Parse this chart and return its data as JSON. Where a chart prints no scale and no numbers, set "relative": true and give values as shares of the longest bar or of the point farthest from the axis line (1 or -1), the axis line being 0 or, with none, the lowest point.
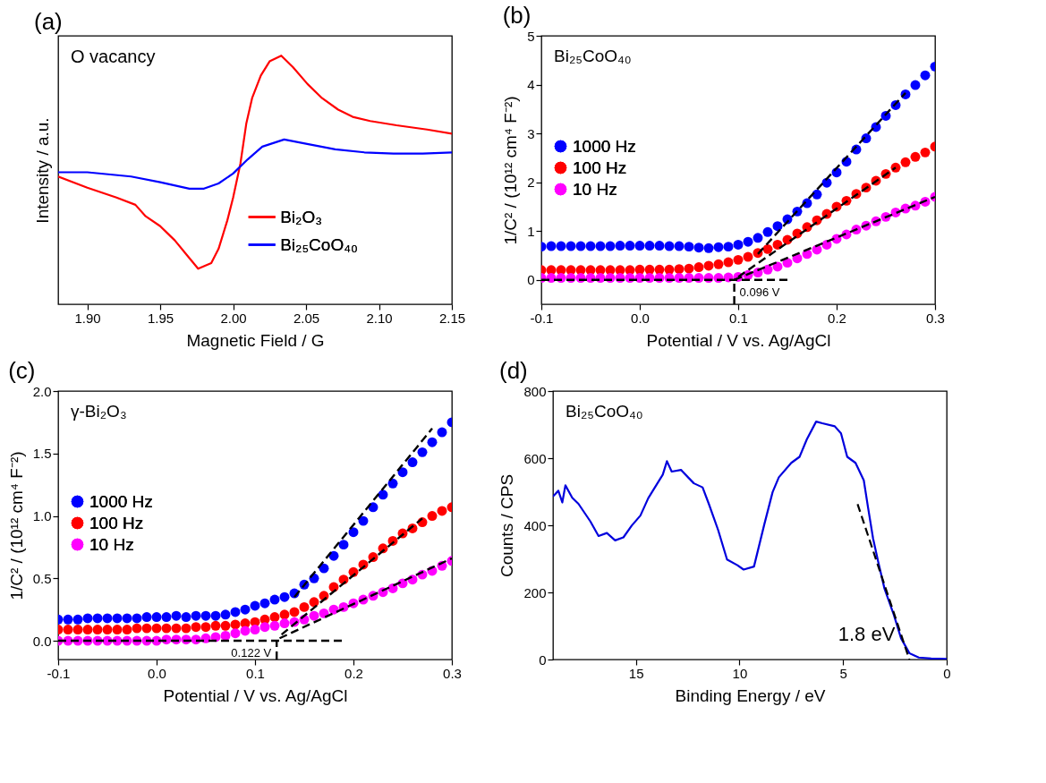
{
  "chart_data": [
    {
      "type": "line",
      "title": "(a)",
      "xlabel": "Magnetic Field / G",
      "ylabel": "Intensity / a.u.",
      "relative": true,
      "tick_labels": "x",
      "legend": "bottom right",
      "annotations": [
        "O vacancy"
      ],
      "xlim": [
        1.88,
        2.15
      ],
      "xticks": [
        {
          "value": 1.9,
          "label": "1.90"
        },
        1.95,
        {
          "value": 2,
          "label": "2.00"
        },
        2.05,
        {
          "value": 2.1,
          "label": "2.10"
        },
        2.15
      ],
      "series": [
        {
          "name": "Bi₂O₃",
          "color": "#ff0000",
          "x": [
            1.88,
            1.9,
            1.92,
            1.933,
            1.94,
            1.95,
            1.96,
            1.968,
            1.976,
            1.985,
            1.99,
            1.996,
            2.0,
            2.005,
            2.009,
            2.013,
            2.019,
            2.025,
            2.033,
            2.041,
            2.051,
            2.061,
            2.072,
            2.082,
            2.094,
            2.112,
            2.133,
            2.15
          ],
          "values": [
            0.514,
            0.469,
            0.429,
            0.4,
            0.354,
            0.314,
            0.257,
            0.2,
            0.143,
            0.166,
            0.223,
            0.337,
            0.429,
            0.566,
            0.726,
            0.829,
            0.92,
            0.977,
            1.0,
            0.954,
            0.886,
            0.829,
            0.783,
            0.754,
            0.737,
            0.72,
            0.703,
            0.686
          ]
        },
        {
          "name": "Bi₂₅CoO₄₀",
          "color": "#0000ff",
          "x": [
            1.88,
            1.9,
            1.93,
            1.95,
            1.97,
            1.98,
            1.99,
            2.0,
            2.01,
            2.02,
            2.035,
            2.05,
            2.07,
            2.09,
            2.11,
            2.13,
            2.15
          ],
          "values": [
            0.531,
            0.531,
            0.514,
            0.491,
            0.465,
            0.465,
            0.486,
            0.526,
            0.583,
            0.634,
            0.663,
            0.646,
            0.623,
            0.611,
            0.606,
            0.606,
            0.611
          ]
        }
      ]
    },
    {
      "type": "scatter",
      "title": "(b)",
      "xlabel": "Potential / V vs. Ag/AgCl",
      "ylabel": "1/C² / (10¹² cm⁴ F⁻²)",
      "marker": "circle",
      "legend": "left",
      "annotations": [
        "Bi₂₅CoO₄₀",
        {
          "text": "0.096 V",
          "x": 0.096,
          "y": 0
        }
      ],
      "xlim": [
        -0.1,
        0.3
      ],
      "xticks": [
        -0.1,
        {
          "value": 0,
          "label": "0.0"
        },
        0.1,
        0.2,
        0.3
      ],
      "ylim": [
        -0.5,
        5
      ],
      "yticks": [
        0,
        1,
        2,
        3,
        4,
        5
      ],
      "x": [
        -0.1,
        -0.09,
        -0.08,
        -0.07,
        -0.06,
        -0.05,
        -0.04,
        -0.03,
        -0.02,
        -0.01,
        0,
        0.01,
        0.02,
        0.03,
        0.04,
        0.05,
        0.06,
        0.07,
        0.08,
        0.09,
        0.1,
        0.11,
        0.12,
        0.13,
        0.14,
        0.15,
        0.16,
        0.17,
        0.18,
        0.19,
        0.2,
        0.21,
        0.22,
        0.23,
        0.24,
        0.25,
        0.26,
        0.27,
        0.28,
        0.29,
        0.3
      ],
      "series": [
        {
          "name": "1000 Hz",
          "color": "#0000ff",
          "values": [
            0.68,
            0.69,
            0.69,
            0.69,
            0.69,
            0.69,
            0.69,
            0.69,
            0.7,
            0.7,
            0.7,
            0.7,
            0.7,
            0.69,
            0.69,
            0.68,
            0.66,
            0.65,
            0.67,
            0.68,
            0.72,
            0.78,
            0.86,
            0.98,
            1.1,
            1.24,
            1.4,
            1.57,
            1.75,
            1.99,
            2.2,
            2.42,
            2.67,
            2.9,
            3.13,
            3.36,
            3.58,
            3.8,
            3.99,
            4.19,
            4.37
          ]
        },
        {
          "name": "100 Hz",
          "color": "#ff0000",
          "values": [
            0.2,
            0.2,
            0.2,
            0.2,
            0.2,
            0.2,
            0.2,
            0.2,
            0.2,
            0.2,
            0.21,
            0.21,
            0.21,
            0.21,
            0.22,
            0.23,
            0.26,
            0.29,
            0.32,
            0.36,
            0.41,
            0.47,
            0.55,
            0.63,
            0.72,
            0.82,
            0.95,
            1.08,
            1.22,
            1.35,
            1.5,
            1.62,
            1.76,
            1.89,
            2.03,
            2.17,
            2.3,
            2.41,
            2.52,
            2.61,
            2.73
          ]
        },
        {
          "name": "10 Hz",
          "color": "#ff00ff",
          "values": [
            0.04,
            0.04,
            0.04,
            0.04,
            0.04,
            0.04,
            0.04,
            0.04,
            0.04,
            0.04,
            0.04,
            0.04,
            0.04,
            0.04,
            0.04,
            0.04,
            0.04,
            0.04,
            0.04,
            0.05,
            0.06,
            0.1,
            0.15,
            0.21,
            0.27,
            0.35,
            0.44,
            0.53,
            0.62,
            0.72,
            0.84,
            0.93,
            1.03,
            1.11,
            1.2,
            1.29,
            1.38,
            1.46,
            1.52,
            1.6,
            1.7
          ]
        },
        {
          "type": "line",
          "marker": "none",
          "line_style": "dashed",
          "color": "#000000",
          "x": [
            0.12,
            0.27
          ],
          "values": [
            0.53,
            3.83
          ]
        },
        {
          "type": "line",
          "marker": "none",
          "line_style": "dashed",
          "color": "#000000",
          "x": [
            0.1,
            0.26
          ],
          "values": [
            0.06,
            2.3
          ]
        },
        {
          "type": "line",
          "marker": "none",
          "line_style": "dashed",
          "color": "#000000",
          "x": [
            0.096,
            0.3
          ],
          "values": [
            0,
            1.7
          ]
        },
        {
          "type": "line",
          "marker": "none",
          "line_style": "dashed",
          "color": "#000000",
          "x": [
            -0.1,
            0.15
          ],
          "values": [
            0,
            0
          ]
        },
        {
          "type": "line",
          "marker": "none",
          "line_style": "dashed",
          "color": "#000000",
          "x": [
            0.096,
            0.096
          ],
          "values": [
            -0.5,
            0
          ]
        }
      ]
    },
    {
      "type": "scatter",
      "title": "(c)",
      "xlabel": "Potential / V vs. Ag/AgCl",
      "ylabel": "1/C² / (10¹² cm⁴ F⁻²)",
      "marker": "circle",
      "legend": "left",
      "annotations": [
        "γ-Bi₂O₃",
        {
          "text": "0.122 V",
          "x": 0.122,
          "y": 0
        }
      ],
      "xlim": [
        -0.1,
        0.3
      ],
      "xticks": [
        -0.1,
        {
          "value": 0,
          "label": "0.0"
        },
        0.1,
        0.2,
        0.3
      ],
      "ylim": [
        -0.15,
        2
      ],
      "yticks": [
        {
          "value": 0,
          "label": "0.0"
        },
        0.5,
        {
          "value": 1,
          "label": "1.0"
        },
        1.5,
        {
          "value": 2,
          "label": "2.0"
        }
      ],
      "x": [
        -0.1,
        -0.09,
        -0.08,
        -0.07,
        -0.06,
        -0.05,
        -0.04,
        -0.03,
        -0.02,
        -0.01,
        0,
        0.01,
        0.02,
        0.03,
        0.04,
        0.05,
        0.06,
        0.07,
        0.08,
        0.09,
        0.1,
        0.11,
        0.12,
        0.13,
        0.14,
        0.15,
        0.16,
        0.17,
        0.18,
        0.19,
        0.2,
        0.21,
        0.22,
        0.23,
        0.24,
        0.25,
        0.26,
        0.27,
        0.28,
        0.29,
        0.3
      ],
      "series": [
        {
          "name": "1000 Hz",
          "color": "#0000ff",
          "values": [
            0.17,
            0.17,
            0.17,
            0.18,
            0.18,
            0.18,
            0.18,
            0.18,
            0.18,
            0.19,
            0.19,
            0.19,
            0.2,
            0.19,
            0.2,
            0.2,
            0.2,
            0.21,
            0.23,
            0.25,
            0.28,
            0.3,
            0.33,
            0.35,
            0.38,
            0.45,
            0.5,
            0.58,
            0.68,
            0.77,
            0.87,
            0.96,
            1.07,
            1.17,
            1.26,
            1.35,
            1.43,
            1.51,
            1.59,
            1.67,
            1.75
          ]
        },
        {
          "name": "100 Hz",
          "color": "#ff0000",
          "values": [
            0.09,
            0.09,
            0.09,
            0.09,
            0.09,
            0.09,
            0.09,
            0.09,
            0.1,
            0.1,
            0.1,
            0.1,
            0.1,
            0.1,
            0.11,
            0.11,
            0.12,
            0.12,
            0.13,
            0.14,
            0.15,
            0.17,
            0.19,
            0.21,
            0.23,
            0.27,
            0.31,
            0.36,
            0.43,
            0.49,
            0.55,
            0.61,
            0.67,
            0.74,
            0.8,
            0.86,
            0.9,
            0.95,
            1.0,
            1.04,
            1.07
          ]
        },
        {
          "name": "10 Hz",
          "color": "#ff00ff",
          "values": [
            0.0,
            0.0,
            0.0,
            0.0,
            0.0,
            0.0,
            0.0,
            0.0,
            0.0,
            0.0,
            0.0,
            0.01,
            0.01,
            0.01,
            0.01,
            0.02,
            0.03,
            0.04,
            0.06,
            0.08,
            0.09,
            0.11,
            0.12,
            0.14,
            0.15,
            0.17,
            0.2,
            0.22,
            0.25,
            0.27,
            0.3,
            0.33,
            0.36,
            0.39,
            0.42,
            0.46,
            0.49,
            0.53,
            0.56,
            0.6,
            0.64
          ]
        },
        {
          "type": "line",
          "marker": "none",
          "line_style": "dashed",
          "color": "#000000",
          "x": [
            0.14,
            0.28
          ],
          "values": [
            0.35,
            1.7
          ]
        },
        {
          "type": "line",
          "marker": "none",
          "line_style": "dashed",
          "color": "#000000",
          "x": [
            0.127,
            0.27
          ],
          "values": [
            0.05,
            0.98
          ]
        },
        {
          "type": "line",
          "marker": "none",
          "line_style": "dashed",
          "color": "#000000",
          "x": [
            0.125,
            0.3
          ],
          "values": [
            0.02,
            0.66
          ]
        },
        {
          "type": "line",
          "marker": "none",
          "line_style": "dashed",
          "color": "#000000",
          "x": [
            -0.1,
            0.19
          ],
          "values": [
            0,
            0
          ]
        },
        {
          "type": "line",
          "marker": "none",
          "line_style": "dashed",
          "color": "#000000",
          "x": [
            0.122,
            0.122
          ],
          "values": [
            -0.15,
            0
          ]
        }
      ]
    },
    {
      "type": "line",
      "title": "(d)",
      "xlabel": "Binding Energy / eV",
      "ylabel": "Counts / CPS",
      "annotations": [
        "Bi₂₅CoO₄₀",
        {
          "text": "1.8 eV",
          "x": 1.8,
          "y": 0
        }
      ],
      "xlim": [
        19,
        0
      ],
      "xticks": [
        15,
        10,
        5,
        0
      ],
      "ylim": [
        0,
        800
      ],
      "yticks": [
        0,
        200,
        400,
        600,
        800
      ],
      "series": [
        {
          "color": "#0000dd",
          "x": [
            19.0,
            18.74,
            18.55,
            18.4,
            18.07,
            17.77,
            17.2,
            16.8,
            16.4,
            16.0,
            15.6,
            15.2,
            14.78,
            14.4,
            14.0,
            13.7,
            13.5,
            13.27,
            12.82,
            12.2,
            11.78,
            11.48,
            11.03,
            10.6,
            10.1,
            9.8,
            9.3,
            8.8,
            8.4,
            8.1,
            7.5,
            7.1,
            6.75,
            6.3,
            6.0,
            5.4,
            5.1,
            4.8,
            4.4,
            4.0,
            3.8,
            3.55,
            3.3,
            3.0,
            2.55,
            2.2,
            1.8,
            1.35,
            0.75,
            0
          ],
          "values": [
            486,
            503,
            468,
            519,
            482,
            464,
            412,
            368,
            377,
            355,
            364,
            399,
            429,
            481,
            521,
            551,
            591,
            560,
            565,
            525,
            513,
            464,
            386,
            298,
            281,
            268,
            277,
            403,
            499,
            543,
            586,
            604,
            656,
            709,
            704,
            695,
            674,
            604,
            586,
            534,
            455,
            360,
            290,
            211,
            133,
            63,
            19,
            6,
            3,
            2
          ]
        },
        {
          "type": "line",
          "line_style": "dashed",
          "color": "#000000",
          "x": [
            4.3,
            1.8
          ],
          "values": [
            463,
            0
          ]
        }
      ]
    }
  ]
}
